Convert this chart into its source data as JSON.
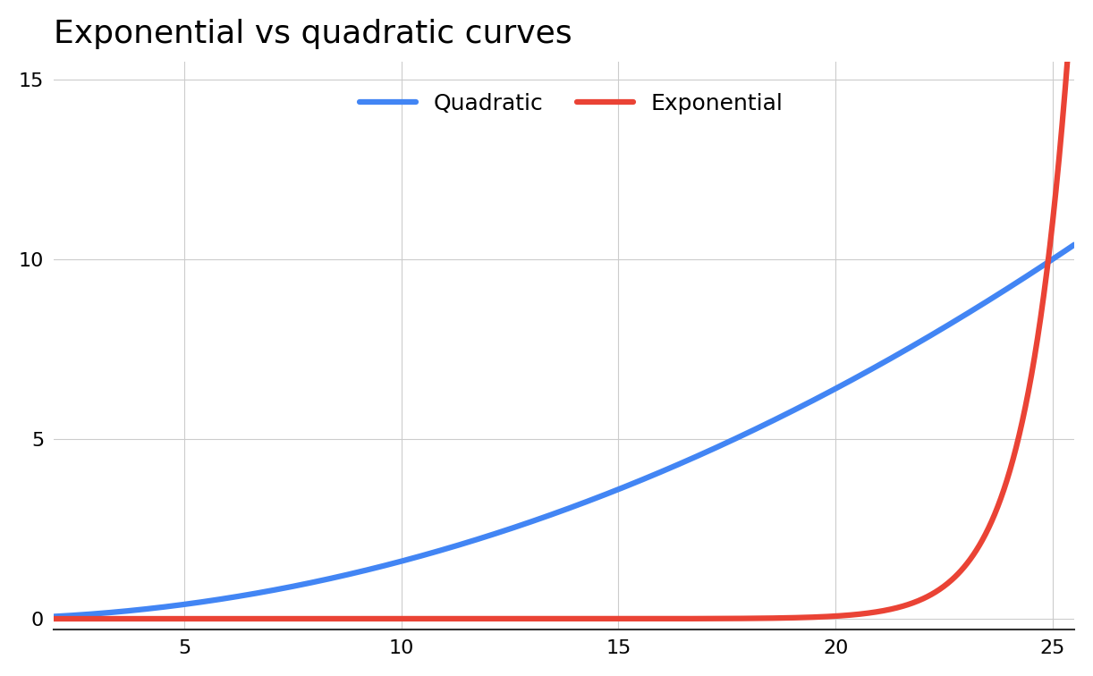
{
  "title": "Exponential vs quadratic curves",
  "title_fontsize": 26,
  "title_fontfamily": "sans-serif",
  "quadratic_label": "Quadratic",
  "exponential_label": "Exponential",
  "quadratic_color": "#4285F4",
  "exponential_color": "#EA4335",
  "line_width": 4.5,
  "x_start": 2,
  "x_end": 25.5,
  "xlim": [
    2,
    25.5
  ],
  "ylim": [
    -0.3,
    15.5
  ],
  "yticks": [
    0,
    5,
    10,
    15
  ],
  "xticks": [
    5,
    10,
    15,
    20,
    25
  ],
  "grid_color": "#cccccc",
  "grid_linewidth": 0.8,
  "background_color": "#ffffff",
  "quadratic_scale": 0.016,
  "exp_shift": 22.0,
  "exp_scale": 0.55,
  "legend_fontsize": 18
}
